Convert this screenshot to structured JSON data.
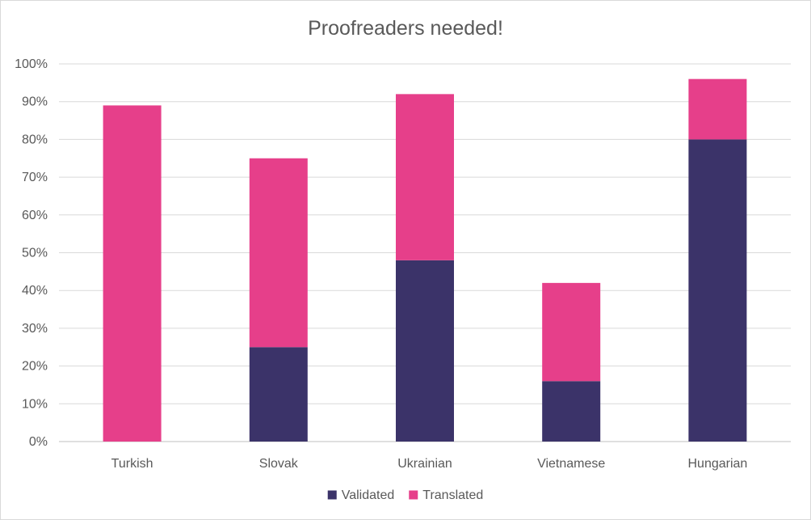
{
  "chart_data": {
    "type": "bar",
    "stacked": true,
    "title": "Proofreaders needed!",
    "categories": [
      "Turkish",
      "Slovak",
      "Ukrainian",
      "Vietnamese",
      "Hungarian"
    ],
    "series": [
      {
        "name": "Validated",
        "color": "#3b3369",
        "values": [
          0,
          25,
          48,
          16,
          80
        ]
      },
      {
        "name": "Translated",
        "color": "#e63f8a",
        "values": [
          89,
          50,
          44,
          26,
          16
        ]
      }
    ],
    "y_ticks": [
      "0%",
      "10%",
      "20%",
      "30%",
      "40%",
      "50%",
      "60%",
      "70%",
      "80%",
      "90%",
      "100%"
    ],
    "ylim": [
      0,
      100
    ],
    "grid": true,
    "legend": "bottom"
  }
}
